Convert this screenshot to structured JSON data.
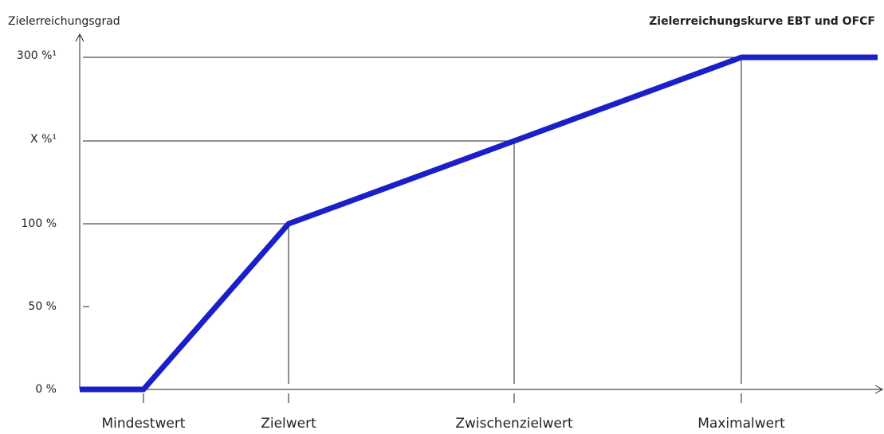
{
  "title": "Zielerreichungskurve EBT und OFCF",
  "y_axis_title": "Zielerreichungsgrad",
  "y_labels": [
    "0 %",
    "50 %",
    "100 %",
    "X %¹",
    "300 %¹"
  ],
  "x_labels": [
    "Mindestwert",
    "Zielwert",
    "Zwischenzielwert",
    "Maximalwert"
  ]
}
